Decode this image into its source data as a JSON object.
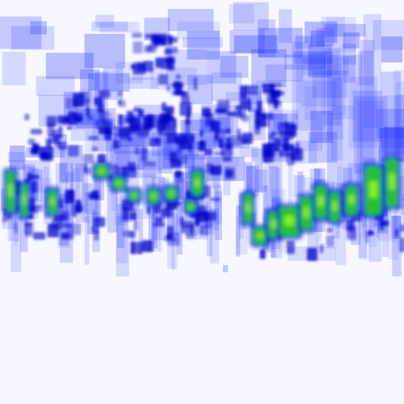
{
  "colors": {
    "background": "#f6f7ff",
    "low_density": "#1f2fff",
    "mid_density": "#0000c8",
    "high_density": "#27c827",
    "peak_density": "#9eff2e"
  }
}
